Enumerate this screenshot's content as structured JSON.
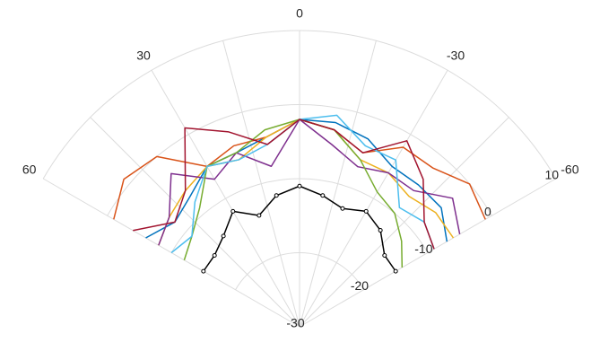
{
  "chart_data": {
    "type": "line",
    "coordinate_system": "polar",
    "angle_unit": "degrees",
    "angle_direction": "counterclockwise from top",
    "theta_range": [
      -60,
      60
    ],
    "theta_ticks": [
      60,
      30,
      0,
      -30,
      -60
    ],
    "theta_tick_labels": [
      "60",
      "30",
      "0",
      "-30",
      "-60"
    ],
    "r_range": [
      -30,
      10
    ],
    "r_ticks": [
      10,
      0,
      -10,
      -20,
      -30
    ],
    "r_tick_labels": [
      "10",
      "0",
      "-10",
      "-20",
      "-30"
    ],
    "grid": true,
    "title": "",
    "series": [
      {
        "color": "#0072bd",
        "marker": false,
        "points": [
          [
            60,
            -6
          ],
          [
            50,
            -8
          ],
          [
            40,
            -7
          ],
          [
            30,
            -5
          ],
          [
            20,
            -5
          ],
          [
            10,
            -4
          ],
          [
            0,
            -2
          ],
          [
            -10,
            -2
          ],
          [
            -20,
            -3
          ],
          [
            -30,
            -5
          ],
          [
            -40,
            -5
          ],
          [
            -50,
            -5
          ],
          [
            -60,
            -7
          ]
        ]
      },
      {
        "color": "#d95319",
        "marker": false,
        "points": [
          [
            60,
            -1
          ],
          [
            50,
            1
          ],
          [
            40,
            0
          ],
          [
            30,
            -5
          ],
          [
            20,
            -4
          ],
          [
            10,
            -4
          ],
          [
            0,
            -2
          ],
          [
            -10,
            -3
          ],
          [
            -20,
            -5
          ],
          [
            -30,
            -2
          ],
          [
            -40,
            -2
          ],
          [
            -50,
            0
          ],
          [
            -60,
            -1
          ]
        ]
      },
      {
        "color": "#edb120",
        "marker": false,
        "points": [
          [
            60,
            -8
          ],
          [
            50,
            -7
          ],
          [
            40,
            -6
          ],
          [
            30,
            -5
          ],
          [
            20,
            -6
          ],
          [
            10,
            -4
          ],
          [
            0,
            -2
          ],
          [
            -10,
            -3
          ],
          [
            -20,
            -6
          ],
          [
            -30,
            -6
          ],
          [
            -40,
            -7
          ],
          [
            -50,
            -6
          ],
          [
            -60,
            -6
          ]
        ]
      },
      {
        "color": "#7e2f8e",
        "marker": false,
        "points": [
          [
            60,
            -8
          ],
          [
            50,
            -7
          ],
          [
            40,
            -3
          ],
          [
            30,
            -7
          ],
          [
            20,
            -5
          ],
          [
            10,
            -8
          ],
          [
            0,
            -2
          ],
          [
            -10,
            -5
          ],
          [
            -20,
            -7
          ],
          [
            -30,
            -6
          ],
          [
            -40,
            -6
          ],
          [
            -50,
            -3
          ],
          [
            -60,
            -5
          ]
        ]
      },
      {
        "color": "#77ac30",
        "marker": false,
        "points": [
          [
            60,
            -12
          ],
          [
            50,
            -11
          ],
          [
            40,
            -9
          ],
          [
            30,
            -5
          ],
          [
            20,
            -5
          ],
          [
            10,
            -3
          ],
          [
            0,
            -2
          ],
          [
            -10,
            -3
          ],
          [
            -20,
            -6
          ],
          [
            -30,
            -9
          ],
          [
            -40,
            -10
          ],
          [
            -50,
            -12
          ],
          [
            -60,
            -14
          ]
        ]
      },
      {
        "color": "#4dbeee",
        "marker": false,
        "points": [
          [
            60,
            -10
          ],
          [
            50,
            -11
          ],
          [
            40,
            -8
          ],
          [
            30,
            -5
          ],
          [
            20,
            -6
          ],
          [
            10,
            -5
          ],
          [
            0,
            -2
          ],
          [
            -10,
            -1
          ],
          [
            -20,
            -4
          ],
          [
            -30,
            -4
          ],
          [
            -40,
            -9
          ],
          [
            -50,
            -8
          ],
          [
            -60,
            -9
          ]
        ]
      },
      {
        "color": "#a2142f",
        "marker": false,
        "points": [
          [
            60,
            -4
          ],
          [
            50,
            -8
          ],
          [
            40,
            -6
          ],
          [
            30,
            1
          ],
          [
            20,
            -2
          ],
          [
            10,
            -5
          ],
          [
            0,
            -2
          ],
          [
            -10,
            -3
          ],
          [
            -20,
            -5
          ],
          [
            -30,
            -1
          ],
          [
            -40,
            -4
          ],
          [
            -50,
            -8
          ],
          [
            -60,
            -9
          ]
        ]
      },
      {
        "color": "#000000",
        "marker": true,
        "points": [
          [
            60,
            -15
          ],
          [
            50,
            -15
          ],
          [
            40,
            -14
          ],
          [
            30,
            -12
          ],
          [
            20,
            -14
          ],
          [
            10,
            -12
          ],
          [
            0,
            -11
          ],
          [
            -10,
            -12
          ],
          [
            -20,
            -13
          ],
          [
            -30,
            -12
          ],
          [
            -40,
            -13
          ],
          [
            -50,
            -15
          ],
          [
            -60,
            -15
          ]
        ]
      }
    ]
  }
}
